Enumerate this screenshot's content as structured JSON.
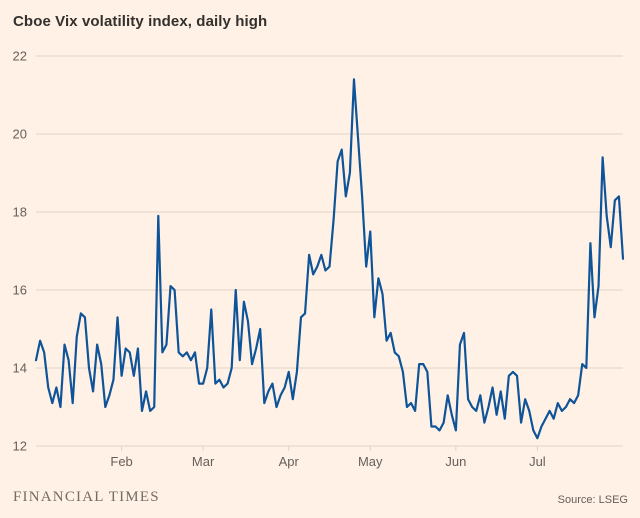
{
  "header": {
    "title": "Cboe Vix volatility index, daily high"
  },
  "footer": {
    "brand": "FINANCIAL TIMES",
    "source": "Source: LSEG"
  },
  "colors": {
    "background": "#FFF1E5",
    "line": "#0F5499",
    "grid": "#E2D2C4",
    "axis_text": "#66605C",
    "title_text": "#33302E"
  },
  "chart_data": {
    "type": "line",
    "title": "Cboe Vix volatility index, daily high",
    "series_name": "Cboe Vix volatility index daily high",
    "ylim": [
      12,
      22
    ],
    "yticks": [
      12,
      14,
      16,
      18,
      20,
      22
    ],
    "xtick_labels": [
      "Feb",
      "Mar",
      "Apr",
      "May",
      "Jun",
      "Jul"
    ],
    "xtick_indices": [
      21,
      41,
      62,
      82,
      103,
      123
    ],
    "grid": "horizontal",
    "legend": "none",
    "values": [
      14.2,
      14.7,
      14.4,
      13.5,
      13.1,
      13.5,
      13.0,
      14.6,
      14.2,
      13.1,
      14.8,
      15.4,
      15.3,
      14.0,
      13.4,
      14.6,
      14.1,
      13.0,
      13.3,
      13.7,
      15.3,
      13.8,
      14.5,
      14.4,
      13.8,
      14.5,
      12.9,
      13.4,
      12.9,
      13.0,
      17.9,
      14.4,
      14.6,
      16.1,
      16.0,
      14.4,
      14.3,
      14.4,
      14.2,
      14.4,
      13.6,
      13.6,
      14.0,
      15.5,
      13.6,
      13.7,
      13.5,
      13.6,
      14.0,
      16.0,
      14.2,
      15.7,
      15.2,
      14.1,
      14.5,
      15.0,
      13.1,
      13.4,
      13.6,
      13.0,
      13.3,
      13.5,
      13.9,
      13.2,
      13.9,
      15.3,
      15.4,
      16.9,
      16.4,
      16.6,
      16.9,
      16.5,
      16.6,
      17.8,
      19.3,
      19.6,
      18.4,
      19.0,
      21.4,
      19.9,
      18.4,
      16.6,
      17.5,
      15.3,
      16.3,
      15.9,
      14.7,
      14.9,
      14.4,
      14.3,
      13.9,
      13.0,
      13.1,
      12.9,
      14.1,
      14.1,
      13.9,
      12.5,
      12.5,
      12.4,
      12.6,
      13.3,
      12.8,
      12.4,
      14.6,
      14.9,
      13.2,
      13.0,
      12.9,
      13.3,
      12.6,
      13.0,
      13.5,
      12.8,
      13.4,
      12.7,
      13.8,
      13.9,
      13.8,
      12.6,
      13.2,
      12.9,
      12.4,
      12.2,
      12.5,
      12.7,
      12.9,
      12.7,
      13.1,
      12.9,
      13.0,
      13.2,
      13.1,
      13.3,
      14.1,
      14.0,
      17.2,
      15.3,
      16.1,
      19.4,
      17.9,
      17.1,
      18.3,
      18.4,
      16.8
    ]
  }
}
